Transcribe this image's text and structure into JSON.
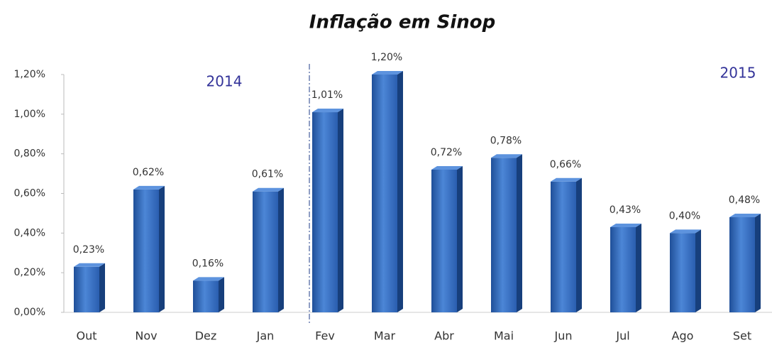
{
  "chart_data": {
    "type": "bar",
    "title": "Inflação em Sinop",
    "annotations": [
      "2014",
      "2015"
    ],
    "categories": [
      "Out",
      "Nov",
      "Dez",
      "Jan",
      "Fev",
      "Mar",
      "Abr",
      "Mai",
      "Jun",
      "Jul",
      "Ago",
      "Set"
    ],
    "values": [
      0.23,
      0.62,
      0.16,
      0.61,
      1.01,
      1.2,
      0.72,
      0.78,
      0.66,
      0.43,
      0.4,
      0.48
    ],
    "value_labels": [
      "0,23%",
      "0,62%",
      "0,16%",
      "0,61%",
      "1,01%",
      "1,20%",
      "0,72%",
      "0,78%",
      "0,66%",
      "0,43%",
      "0,40%",
      "0,48%"
    ],
    "color": "#2e66b8",
    "ylim": [
      0,
      1.2
    ],
    "yticks": [
      {
        "value": 0,
        "label": "0,00%"
      },
      {
        "value": 0.2,
        "label": "0,20%"
      },
      {
        "value": 0.4,
        "label": "0,40%"
      },
      {
        "value": 0.6,
        "label": "0,60%"
      },
      {
        "value": 0.8,
        "label": "0,80%"
      },
      {
        "value": 1.0,
        "label": "1,00%"
      },
      {
        "value": 1.2,
        "label": "1,20%"
      }
    ],
    "grid": false
  }
}
